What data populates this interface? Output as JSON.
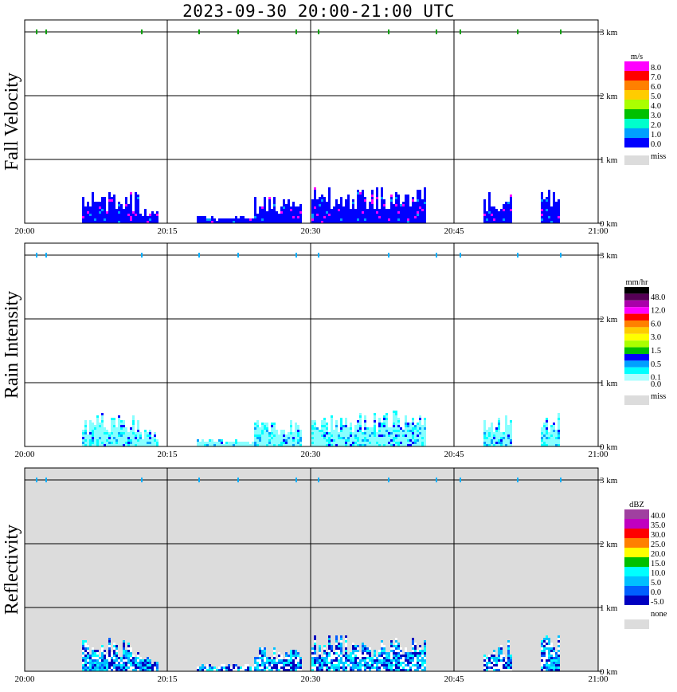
{
  "title": "2023-09-30   20:00-21:00 UTC",
  "x_ticks": [
    "20:00",
    "20:15",
    "20:30",
    "20:45",
    "21:00"
  ],
  "y_ticks": [
    "3 km",
    "2 km",
    "1 km",
    "0 km"
  ],
  "colors": {
    "background_missing": "#dcdcdc",
    "grid": "#000000",
    "melting_mark_green": "#00a000",
    "melting_mark_cyan": "#00b0ff"
  },
  "panels": [
    {
      "id": "fall-velocity",
      "ylabel": "Fall Velocity",
      "background": "#ffffff",
      "colorbar": {
        "unit": "m/s",
        "entries": [
          {
            "color": "#ff00ff",
            "label": "8.0"
          },
          {
            "color": "#ff0000",
            "label": "7.0"
          },
          {
            "color": "#ff8000",
            "label": "6.0"
          },
          {
            "color": "#ffcc00",
            "label": "5.0"
          },
          {
            "color": "#aaff00",
            "label": "4.0"
          },
          {
            "color": "#00c000",
            "label": "3.0"
          },
          {
            "color": "#00ffcc",
            "label": "2.0"
          },
          {
            "color": "#00a0ff",
            "label": "1.0"
          },
          {
            "color": "#0000ff",
            "label": "0.0"
          }
        ],
        "extra": [
          {
            "color": "#dcdcdc",
            "label": "miss"
          }
        ]
      }
    },
    {
      "id": "rain-intensity",
      "ylabel": "Rain Intensity",
      "background": "#ffffff",
      "colorbar": {
        "unit": "mm/hr",
        "entries": [
          {
            "color": "#000000",
            "label": ""
          },
          {
            "color": "#550055",
            "label": "48.0"
          },
          {
            "color": "#aa00aa",
            "label": ""
          },
          {
            "color": "#ff00ff",
            "label": "12.0"
          },
          {
            "color": "#ff0000",
            "label": ""
          },
          {
            "color": "#ff8000",
            "label": "6.0"
          },
          {
            "color": "#ffcc00",
            "label": ""
          },
          {
            "color": "#ffff00",
            "label": "3.0"
          },
          {
            "color": "#aaff00",
            "label": ""
          },
          {
            "color": "#00c000",
            "label": "1.5"
          },
          {
            "color": "#0000ff",
            "label": ""
          },
          {
            "color": "#00a0ff",
            "label": "0.5"
          },
          {
            "color": "#00ffff",
            "label": ""
          },
          {
            "color": "#aaffff",
            "label": "0.1"
          },
          {
            "color": "#ffffff",
            "label": "0.0"
          }
        ],
        "extra": [
          {
            "color": "#dcdcdc",
            "label": "miss"
          }
        ]
      }
    },
    {
      "id": "reflectivity",
      "ylabel": "Reflectivity",
      "background": "#dcdcdc",
      "colorbar": {
        "unit": "dBZ",
        "entries": [
          {
            "color": "#a040a0",
            "label": "40.0"
          },
          {
            "color": "#c000c0",
            "label": "35.0"
          },
          {
            "color": "#ff0000",
            "label": "30.0"
          },
          {
            "color": "#ff8000",
            "label": "25.0"
          },
          {
            "color": "#ffff00",
            "label": "20.0"
          },
          {
            "color": "#00c000",
            "label": "15.0"
          },
          {
            "color": "#00ffff",
            "label": "10.0"
          },
          {
            "color": "#00c0ff",
            "label": "5.0"
          },
          {
            "color": "#0060ff",
            "label": "0.0"
          },
          {
            "color": "#0000c0",
            "label": "-5.0"
          }
        ],
        "extra": [
          {
            "color": "#ffffff",
            "label": "none"
          },
          {
            "color": "#dcdcdc",
            "label": ""
          }
        ]
      }
    }
  ],
  "chart_data": {
    "type": "heatmap",
    "title": "2023-09-30   20:00-21:00 UTC",
    "x_range": [
      "20:00",
      "21:00"
    ],
    "y_range_km": [
      0,
      3.2
    ],
    "panels": [
      "Fall Velocity",
      "Rain Intensity",
      "Reflectivity"
    ],
    "echo_columns": [
      {
        "from": "20:06",
        "to": "20:12",
        "top_km": 0.5
      },
      {
        "from": "20:12",
        "to": "20:14",
        "top_km": 0.25
      },
      {
        "from": "20:18",
        "to": "20:24",
        "top_km": 0.1
      },
      {
        "from": "20:24",
        "to": "20:29",
        "top_km": 0.4
      },
      {
        "from": "20:30",
        "to": "20:42",
        "top_km": 0.55
      },
      {
        "from": "20:48",
        "to": "20:51",
        "top_km": 0.5
      },
      {
        "from": "20:54",
        "to": "20:56",
        "top_km": 0.55
      }
    ]
  }
}
